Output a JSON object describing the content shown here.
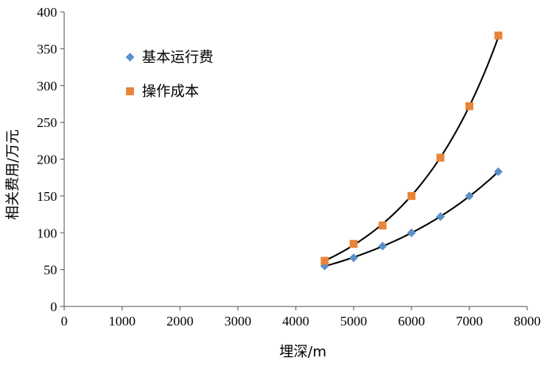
{
  "chart_data": {
    "type": "scatter",
    "title": "",
    "xlabel": "埋深/m",
    "ylabel": "相关费用/万元",
    "xlim": [
      0,
      8000
    ],
    "ylim": [
      0,
      400
    ],
    "xticks": [
      0,
      1000,
      2000,
      3000,
      4000,
      5000,
      6000,
      7000,
      8000
    ],
    "yticks": [
      0,
      50,
      100,
      150,
      200,
      250,
      300,
      350,
      400
    ],
    "grid": false,
    "legend_position": "top-left",
    "x": [
      4500,
      5000,
      5500,
      6000,
      6500,
      7000,
      7500
    ],
    "series": [
      {
        "name": "基本运行费",
        "marker": "diamond",
        "color": "#5b8fc9",
        "values": [
          55,
          66,
          82,
          100,
          122,
          150,
          183
        ],
        "trendline": true
      },
      {
        "name": "操作成本",
        "marker": "square",
        "color": "#e8853a",
        "values": [
          62,
          85,
          110,
          150,
          202,
          272,
          368
        ],
        "trendline": true
      }
    ]
  }
}
